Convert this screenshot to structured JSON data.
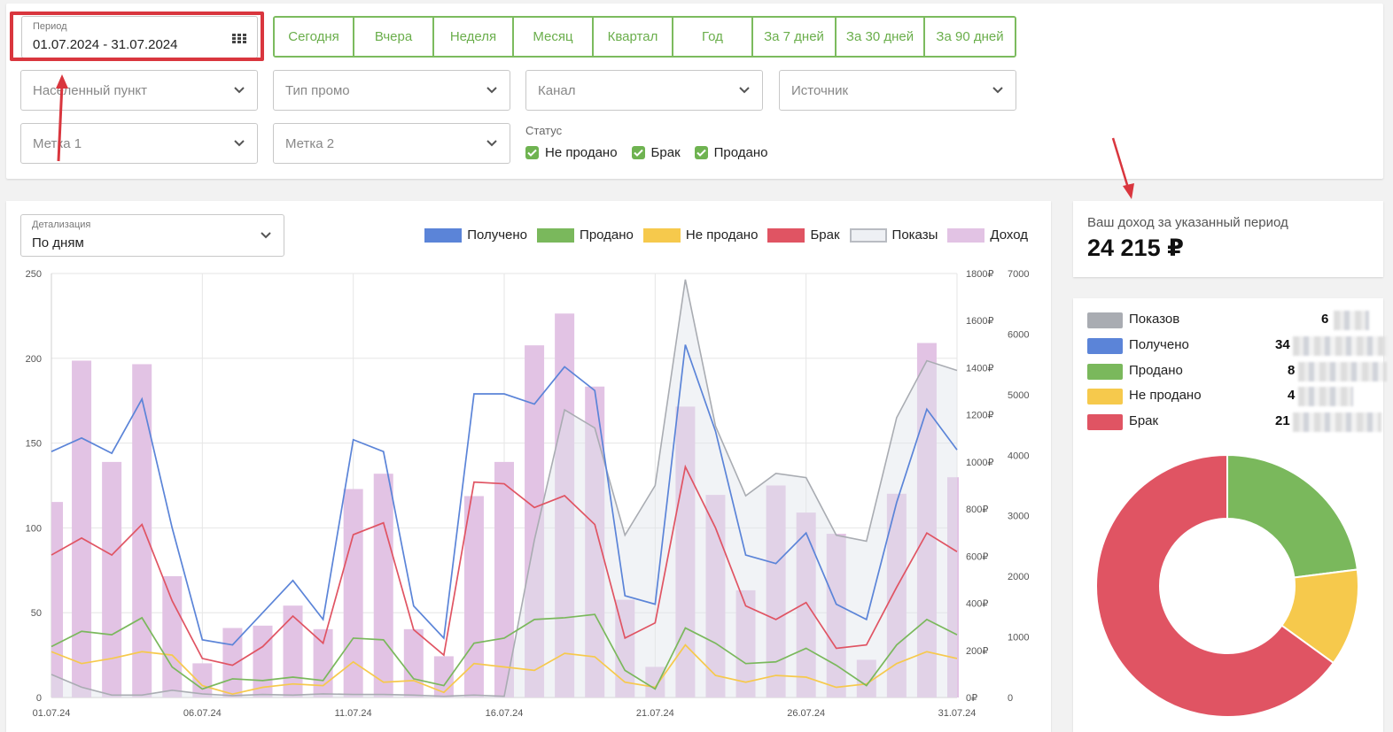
{
  "filters": {
    "date_range": {
      "label": "Период",
      "value": "01.07.2024 - 31.07.2024"
    },
    "period_buttons": [
      "Сегодня",
      "Вчера",
      "Неделя",
      "Месяц",
      "Квартал",
      "Год",
      "За 7 дней",
      "За 30 дней",
      "За 90 дней"
    ],
    "selects": {
      "locality": "Населенный пункт",
      "promo_type": "Тип промо",
      "channel": "Канал",
      "source": "Источник",
      "tag1": "Метка 1",
      "tag2": "Метка 2"
    },
    "status": {
      "title": "Статус",
      "options": [
        "Не продано",
        "Брак",
        "Продано"
      ]
    }
  },
  "detail": {
    "label": "Детализация",
    "value": "По дням"
  },
  "legend": [
    {
      "name": "Получено",
      "color": "#5b84d8"
    },
    {
      "name": "Продано",
      "color": "#7ab85c"
    },
    {
      "name": "Не продано",
      "color": "#f6c94c"
    },
    {
      "name": "Брак",
      "color": "#e05463"
    },
    {
      "name": "Показы",
      "color": "#eef0f4"
    },
    {
      "name": "Доход",
      "color": "#e2c3e4"
    }
  ],
  "income": {
    "label": "Ваш доход за указанный период",
    "amount": "24 215 ₽"
  },
  "stats": [
    {
      "name": "Показов",
      "color": "#a9acb2",
      "value": "6"
    },
    {
      "name": "Получено",
      "color": "#5b84d8",
      "value": "34"
    },
    {
      "name": "Продано",
      "color": "#7ab85c",
      "value": "8"
    },
    {
      "name": "Не продано",
      "color": "#f6c94c",
      "value": "4"
    },
    {
      "name": "Брак",
      "color": "#e05463",
      "value": "21"
    }
  ],
  "chart_data": {
    "type": "bar",
    "dates": [
      "01.07.24",
      "02.07.24",
      "03.07.24",
      "04.07.24",
      "05.07.24",
      "06.07.24",
      "07.07.24",
      "08.07.24",
      "09.07.24",
      "10.07.24",
      "11.07.24",
      "12.07.24",
      "13.07.24",
      "14.07.24",
      "15.07.24",
      "16.07.24",
      "17.07.24",
      "18.07.24",
      "19.07.24",
      "20.07.24",
      "21.07.24",
      "22.07.24",
      "23.07.24",
      "24.07.24",
      "25.07.24",
      "26.07.24",
      "27.07.24",
      "28.07.24",
      "29.07.24",
      "30.07.24",
      "31.07.24"
    ],
    "x_tick_labels": [
      "01.07.24",
      "06.07.24",
      "11.07.24",
      "16.07.24",
      "21.07.24",
      "26.07.24",
      "31.07.24"
    ],
    "left_axis": {
      "ticks": [
        "0",
        "50",
        "100",
        "150",
        "200",
        "250"
      ],
      "ylim": [
        0,
        250
      ]
    },
    "right_axis_income": {
      "ticks": [
        "0₽",
        "200₽",
        "400₽",
        "600₽",
        "800₽",
        "1000₽",
        "1200₽",
        "1400₽",
        "1600₽",
        "1800₽"
      ],
      "ylim": [
        0,
        1800
      ]
    },
    "right_axis_shows": {
      "ticks": [
        "0",
        "1000",
        "2000",
        "3000",
        "4000",
        "5000",
        "6000",
        "7000"
      ],
      "ylim": [
        0,
        7000
      ]
    },
    "series": [
      {
        "name": "Доход",
        "kind": "bar",
        "axis": "income",
        "values": [
          830,
          1430,
          1000,
          1415,
          515,
          145,
          295,
          305,
          390,
          290,
          885,
          950,
          290,
          175,
          855,
          1000,
          1495,
          1630,
          1320,
          415,
          130,
          1235,
          860,
          455,
          900,
          785,
          695,
          160,
          865,
          1505,
          935
        ]
      },
      {
        "name": "Показы",
        "kind": "area",
        "axis": "shows",
        "values": [
          380,
          170,
          40,
          40,
          120,
          60,
          30,
          50,
          40,
          60,
          50,
          50,
          40,
          20,
          40,
          20,
          2600,
          4750,
          4450,
          2680,
          3500,
          6900,
          4480,
          3330,
          3700,
          3630,
          2680,
          2580,
          4620,
          5560,
          5400
        ]
      },
      {
        "name": "Получено",
        "kind": "line",
        "axis": "left",
        "values": [
          145,
          153,
          144,
          176,
          100,
          34,
          31,
          50,
          69,
          46,
          152,
          145,
          54,
          35,
          179,
          179,
          173,
          195,
          181,
          60,
          55,
          208,
          157,
          84,
          79,
          97,
          55,
          46,
          115,
          170,
          146
        ]
      },
      {
        "name": "Брак",
        "kind": "line",
        "axis": "left",
        "values": [
          84,
          94,
          84,
          102,
          57,
          23,
          19,
          30,
          48,
          32,
          96,
          103,
          40,
          25,
          127,
          126,
          112,
          119,
          102,
          35,
          44,
          136,
          100,
          54,
          46,
          56,
          29,
          31,
          65,
          97,
          86
        ]
      },
      {
        "name": "Продано",
        "kind": "line",
        "axis": "left",
        "values": [
          30,
          39,
          37,
          47,
          18,
          5,
          11,
          10,
          12,
          10,
          35,
          34,
          11,
          7,
          32,
          35,
          46,
          47,
          49,
          16,
          5,
          41,
          32,
          20,
          21,
          29,
          19,
          7,
          31,
          46,
          37
        ]
      },
      {
        "name": "Не продано",
        "kind": "line",
        "axis": "left",
        "values": [
          27,
          20,
          23,
          27,
          25,
          7,
          2,
          6,
          8,
          7,
          21,
          9,
          10,
          3,
          20,
          18,
          16,
          26,
          24,
          9,
          6,
          31,
          13,
          9,
          13,
          12,
          6,
          8,
          20,
          27,
          23
        ]
      }
    ]
  },
  "donut": {
    "segments": [
      {
        "name": "Продано",
        "color": "#7ab85c",
        "value": 23
      },
      {
        "name": "Не продано",
        "color": "#f6c94c",
        "value": 12
      },
      {
        "name": "Брак",
        "color": "#e05463",
        "value": 65
      }
    ]
  }
}
